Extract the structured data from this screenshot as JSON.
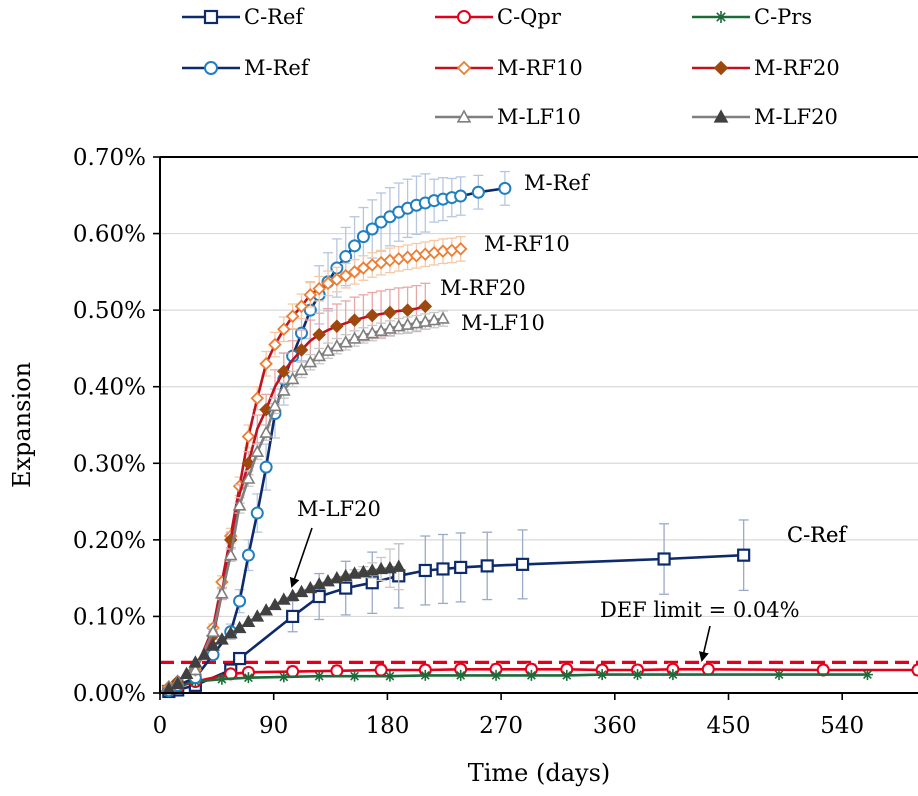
{
  "chart_data": {
    "type": "line",
    "title": "",
    "xlabel": "Time (days)",
    "ylabel": "Expansion",
    "xlim": [
      0,
      600
    ],
    "ylim": [
      0,
      0.7
    ],
    "x_ticks": [
      0,
      90,
      180,
      270,
      360,
      450,
      540
    ],
    "x_tick_labels": [
      "0",
      "90",
      "180",
      "270",
      "360",
      "450",
      "540"
    ],
    "y_ticks": [
      0,
      0.1,
      0.2,
      0.3,
      0.4,
      0.5,
      0.6,
      0.7
    ],
    "y_tick_labels": [
      "0.00%",
      "0.10%",
      "0.20%",
      "0.30%",
      "0.40%",
      "0.50%",
      "0.60%",
      "0.70%"
    ],
    "grid": "horizontal",
    "legend_position": "top",
    "limit_line": {
      "label": "DEF limit = 0.04%",
      "value": 0.04,
      "color": "#e3001b"
    },
    "series": [
      {
        "name": "C-Ref",
        "color": "#0d2a6b",
        "error_color": "#9aaac8",
        "marker": "square-open",
        "marker_step": 1,
        "x": [
          0,
          7,
          14,
          28,
          56,
          63,
          105,
          126,
          147,
          168,
          189,
          210,
          224,
          238,
          259,
          287,
          399,
          462
        ],
        "y": [
          0,
          0.002,
          0.004,
          0.01,
          0.03,
          0.045,
          0.1,
          0.126,
          0.137,
          0.144,
          0.153,
          0.16,
          0.162,
          0.164,
          0.166,
          0.168,
          0.175,
          0.18
        ],
        "err": [
          0,
          0,
          0,
          0,
          0.003,
          0.005,
          0.02,
          0.03,
          0.035,
          0.04,
          0.042,
          0.045,
          0.045,
          0.045,
          0.044,
          0.045,
          0.046,
          0.046
        ]
      },
      {
        "name": "C-Qpr",
        "color": "#e3001b",
        "error_color": "#f2a0a0",
        "marker": "circle-open",
        "marker_step": 1,
        "x": [
          0,
          7,
          14,
          28,
          56,
          70,
          105,
          140,
          175,
          210,
          238,
          266,
          294,
          322,
          350,
          378,
          406,
          434,
          525,
          600
        ],
        "y": [
          0,
          0.004,
          0.008,
          0.015,
          0.025,
          0.027,
          0.028,
          0.029,
          0.03,
          0.03,
          0.031,
          0.031,
          0.031,
          0.031,
          0.03,
          0.03,
          0.031,
          0.031,
          0.03,
          0.03
        ],
        "err": [
          0,
          0,
          0,
          0.002,
          0.005,
          0.006,
          0.007,
          0.007,
          0.007,
          0.007,
          0.007,
          0.007,
          0.007,
          0.007,
          0.007,
          0.007,
          0.007,
          0.007,
          0.007,
          0.007
        ]
      },
      {
        "name": "C-Prs",
        "color": "#1e6b3a",
        "error_color": "#1e6b3a",
        "marker": "star",
        "marker_step": 1,
        "x": [
          0,
          7,
          14,
          28,
          49,
          70,
          98,
          126,
          154,
          182,
          210,
          238,
          266,
          294,
          322,
          350,
          378,
          406,
          490,
          560
        ],
        "y": [
          0,
          0.005,
          0.01,
          0.015,
          0.018,
          0.02,
          0.021,
          0.022,
          0.022,
          0.022,
          0.023,
          0.023,
          0.023,
          0.023,
          0.023,
          0.024,
          0.024,
          0.024,
          0.024,
          0.024
        ],
        "err": [
          0,
          0,
          0,
          0,
          0,
          0,
          0,
          0,
          0,
          0,
          0,
          0,
          0,
          0,
          0,
          0,
          0,
          0,
          0,
          0
        ]
      },
      {
        "name": "M-Ref",
        "color": "#0d2a6b",
        "line_color": "#0d2a6b",
        "marker_color": "#1f7fc0",
        "error_color": "#b7c6e0",
        "marker": "circle-open",
        "marker_step": 1,
        "label": "M-Ref",
        "x": [
          0,
          7,
          14,
          28,
          42,
          56,
          63,
          70,
          77,
          84,
          91,
          98,
          105,
          112,
          119,
          126,
          133,
          140,
          147,
          154,
          161,
          168,
          175,
          182,
          189,
          196,
          203,
          210,
          217,
          224,
          231,
          238,
          252,
          273
        ],
        "y": [
          0,
          0.003,
          0.01,
          0.02,
          0.05,
          0.08,
          0.12,
          0.18,
          0.235,
          0.295,
          0.365,
          0.41,
          0.44,
          0.47,
          0.5,
          0.52,
          0.537,
          0.555,
          0.57,
          0.584,
          0.596,
          0.606,
          0.615,
          0.622,
          0.628,
          0.633,
          0.637,
          0.64,
          0.643,
          0.645,
          0.647,
          0.649,
          0.654,
          0.659
        ],
        "err": [
          0,
          0,
          0,
          0,
          0.005,
          0.01,
          0.015,
          0.02,
          0.025,
          0.03,
          0.032,
          0.034,
          0.035,
          0.036,
          0.037,
          0.038,
          0.038,
          0.038,
          0.038,
          0.038,
          0.038,
          0.038,
          0.038,
          0.038,
          0.038,
          0.038,
          0.038,
          0.038,
          0.028,
          0.028,
          0.025,
          0.025,
          0.022,
          0.022
        ]
      },
      {
        "name": "M-RF10",
        "color": "#c1121f",
        "line_color": "#c1121f",
        "marker_color": "#ed7d31",
        "error_color": "#f5c9a8",
        "marker": "diamond-open",
        "marker_step": 1,
        "label": "M-RF10",
        "x": [
          0,
          7,
          14,
          28,
          42,
          49,
          56,
          63,
          70,
          77,
          84,
          91,
          98,
          105,
          112,
          119,
          126,
          133,
          140,
          147,
          154,
          161,
          168,
          175,
          182,
          189,
          196,
          203,
          210,
          217,
          224,
          231,
          238
        ],
        "y": [
          0,
          0.008,
          0.015,
          0.03,
          0.085,
          0.145,
          0.205,
          0.27,
          0.335,
          0.385,
          0.43,
          0.455,
          0.475,
          0.492,
          0.505,
          0.52,
          0.528,
          0.535,
          0.54,
          0.545,
          0.55,
          0.555,
          0.559,
          0.562,
          0.565,
          0.567,
          0.569,
          0.571,
          0.573,
          0.575,
          0.577,
          0.578,
          0.58
        ],
        "err": [
          0,
          0,
          0,
          0,
          0.005,
          0.008,
          0.01,
          0.012,
          0.015,
          0.015,
          0.016,
          0.016,
          0.016,
          0.016,
          0.016,
          0.016,
          0.016,
          0.016,
          0.016,
          0.016,
          0.016,
          0.016,
          0.016,
          0.016,
          0.016,
          0.016,
          0.016,
          0.016,
          0.016,
          0.016,
          0.016,
          0.016,
          0.016
        ]
      },
      {
        "name": "M-RF20",
        "color": "#8b1c13",
        "line_color": "#c1121f",
        "marker_color": "#9e480e",
        "error_color": "#e8a7a7",
        "marker": "diamond-filled",
        "marker_step": 2,
        "label": "M-RF20",
        "x": [
          0,
          7,
          14,
          28,
          42,
          49,
          56,
          63,
          70,
          77,
          84,
          91,
          98,
          105,
          112,
          119,
          126,
          133,
          140,
          147,
          154,
          161,
          168,
          175,
          182,
          189,
          196,
          203,
          210
        ],
        "y": [
          0,
          0.008,
          0.015,
          0.03,
          0.075,
          0.13,
          0.2,
          0.26,
          0.3,
          0.345,
          0.37,
          0.4,
          0.42,
          0.435,
          0.448,
          0.46,
          0.468,
          0.474,
          0.479,
          0.483,
          0.487,
          0.49,
          0.493,
          0.495,
          0.497,
          0.499,
          0.5,
          0.502,
          0.505
        ],
        "err": [
          0,
          0,
          0,
          0,
          0.005,
          0.008,
          0.01,
          0.012,
          0.015,
          0.018,
          0.02,
          0.022,
          0.024,
          0.025,
          0.026,
          0.027,
          0.028,
          0.028,
          0.029,
          0.029,
          0.03,
          0.03,
          0.03,
          0.03,
          0.03,
          0.03,
          0.03,
          0.03,
          0.03
        ]
      },
      {
        "name": "M-LF10",
        "color": "#7f7f7f",
        "line_color": "#7f7f7f",
        "marker_color": "#7f7f7f",
        "error_color": "#c8c8c8",
        "marker": "triangle-open",
        "marker_step": 1,
        "label": "M-LF10",
        "x": [
          0,
          7,
          14,
          28,
          42,
          49,
          56,
          63,
          70,
          77,
          84,
          91,
          98,
          105,
          112,
          119,
          126,
          133,
          140,
          147,
          154,
          161,
          168,
          175,
          182,
          189,
          196,
          203,
          210,
          217,
          224
        ],
        "y": [
          0,
          0.008,
          0.015,
          0.03,
          0.08,
          0.13,
          0.18,
          0.245,
          0.28,
          0.315,
          0.34,
          0.375,
          0.395,
          0.41,
          0.422,
          0.432,
          0.44,
          0.447,
          0.453,
          0.458,
          0.463,
          0.467,
          0.47,
          0.473,
          0.476,
          0.479,
          0.481,
          0.483,
          0.485,
          0.487,
          0.489
        ],
        "err": [
          0,
          0,
          0,
          0,
          0.004,
          0.006,
          0.008,
          0.01,
          0.01,
          0.01,
          0.01,
          0.01,
          0.01,
          0.01,
          0.01,
          0.01,
          0.01,
          0.01,
          0.01,
          0.01,
          0.01,
          0.01,
          0.01,
          0.01,
          0.01,
          0.01,
          0.01,
          0.01,
          0.01,
          0.01,
          0.01
        ]
      },
      {
        "name": "M-LF20",
        "color": "#404040",
        "line_color": "#7f7f7f",
        "marker_color": "#404040",
        "error_color": "#c8c8c8",
        "marker": "triangle-filled",
        "marker_step": 1,
        "label": "M-LF20",
        "x": [
          0,
          7,
          14,
          21,
          28,
          35,
          42,
          49,
          56,
          63,
          70,
          77,
          84,
          91,
          98,
          105,
          112,
          119,
          126,
          133,
          140,
          147,
          154,
          161,
          168,
          175,
          182,
          189
        ],
        "y": [
          0,
          0.005,
          0.012,
          0.025,
          0.04,
          0.05,
          0.062,
          0.07,
          0.078,
          0.085,
          0.093,
          0.1,
          0.108,
          0.115,
          0.122,
          0.127,
          0.132,
          0.137,
          0.142,
          0.146,
          0.15,
          0.153,
          0.156,
          0.158,
          0.16,
          0.162,
          0.163,
          0.165
        ],
        "err": [
          0,
          0,
          0,
          0,
          0,
          0,
          0,
          0,
          0,
          0,
          0,
          0,
          0,
          0,
          0,
          0,
          0,
          0,
          0,
          0,
          0,
          0,
          0.005,
          0.007,
          0.01,
          0.015,
          0.025,
          0.03
        ]
      }
    ]
  }
}
